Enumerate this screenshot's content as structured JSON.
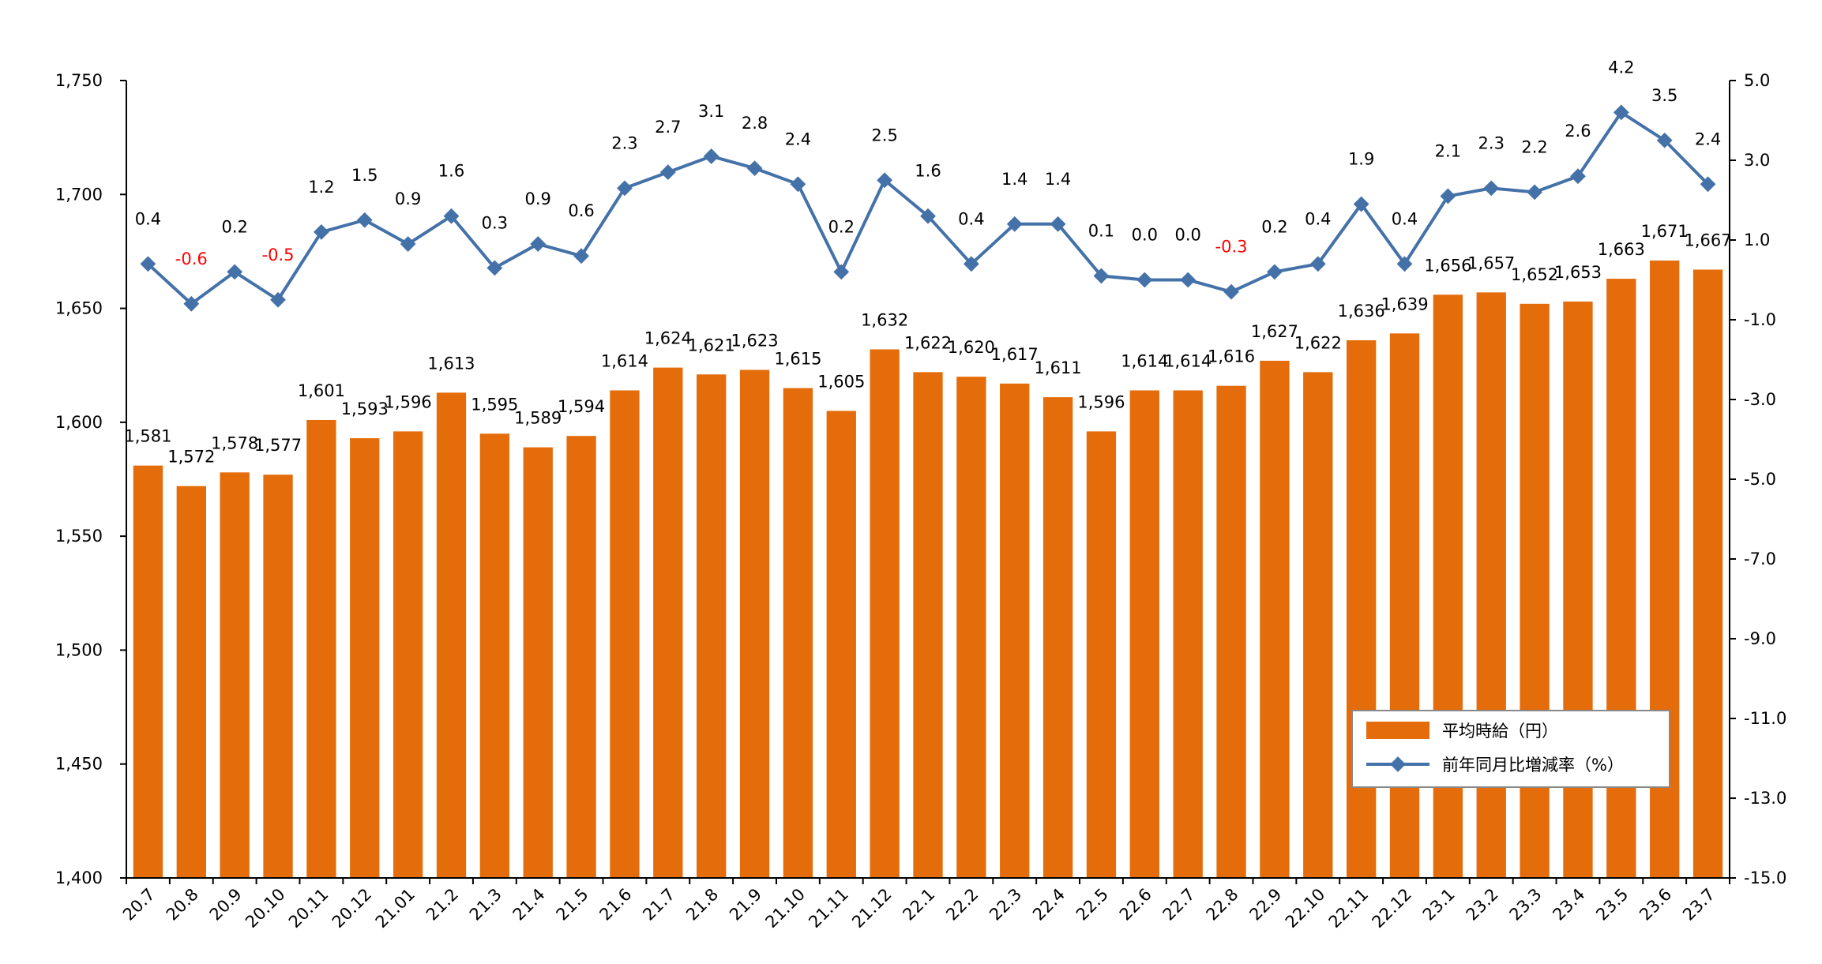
{
  "chart_data": {
    "type": "bar",
    "title": "",
    "xlabel": "",
    "ylabel": "",
    "categories": [
      "20.7",
      "20.8",
      "20.9",
      "20.10",
      "20.11",
      "20.12",
      "21.01",
      "21.2",
      "21.3",
      "21.4",
      "21.5",
      "21.6",
      "21.7",
      "21.8",
      "21.9",
      "21.10",
      "21.11",
      "21.12",
      "22.1",
      "22.2",
      "22.3",
      "22.4",
      "22.5",
      "22.6",
      "22.7",
      "22.8",
      "22.9",
      "22.10",
      "22.11",
      "22.12",
      "23.1",
      "23.2",
      "23.3",
      "23.4",
      "23.5",
      "23.6",
      "23.7"
    ],
    "series": [
      {
        "name": "平均時給（円）",
        "type": "bar",
        "axis": "left",
        "color": "#E46C0A",
        "values": [
          1581,
          1572,
          1578,
          1577,
          1601,
          1593,
          1596,
          1613,
          1595,
          1589,
          1594,
          1614,
          1624,
          1621,
          1623,
          1615,
          1605,
          1632,
          1622,
          1620,
          1617,
          1611,
          1596,
          1614,
          1614,
          1616,
          1627,
          1622,
          1636,
          1639,
          1656,
          1657,
          1652,
          1653,
          1663,
          1671,
          1667
        ],
        "labels": [
          "1,581",
          "1,572",
          "1,578",
          "1,577",
          "1,601",
          "1,593",
          "1,596",
          "1,613",
          "1,595",
          "1,589",
          "1,594",
          "1,614",
          "1,624",
          "1,621",
          "1,623",
          "1,615",
          "1,605",
          "1,632",
          "1,622",
          "1,620",
          "1,617",
          "1,611",
          "1,596",
          "1,614",
          "1,614",
          "1,616",
          "1,627",
          "1,622",
          "1,636",
          "1,639",
          "1,656",
          "1,657",
          "1,652",
          "1,653",
          "1,663",
          "1,671",
          "1,667"
        ]
      },
      {
        "name": "前年同月比増減率（%）",
        "type": "line",
        "axis": "right",
        "color": "#4472A8",
        "negative_label_color": "#FF0000",
        "values": [
          0.4,
          -0.6,
          0.2,
          -0.5,
          1.2,
          1.5,
          0.9,
          1.6,
          0.3,
          0.9,
          0.6,
          2.3,
          2.7,
          3.1,
          2.8,
          2.4,
          0.2,
          2.5,
          1.6,
          0.4,
          1.4,
          1.4,
          0.1,
          0.0,
          0.0,
          -0.3,
          0.2,
          0.4,
          1.9,
          0.4,
          2.1,
          2.3,
          2.2,
          2.6,
          4.2,
          3.5,
          2.4
        ],
        "labels": [
          "0.4",
          "-0.6",
          "0.2",
          "-0.5",
          "1.2",
          "1.5",
          "0.9",
          "1.6",
          "0.3",
          "0.9",
          "0.6",
          "2.3",
          "2.7",
          "3.1",
          "2.8",
          "2.4",
          "0.2",
          "2.5",
          "1.6",
          "0.4",
          "1.4",
          "1.4",
          "0.1",
          "0.0",
          "0.0",
          "-0.3",
          "0.2",
          "0.4",
          "1.9",
          "0.4",
          "2.1",
          "2.3",
          "2.2",
          "2.6",
          "4.2",
          "3.5",
          "2.4"
        ]
      }
    ],
    "y_left": {
      "min": 1400,
      "max": 1750,
      "step": 50,
      "tick_labels": [
        "1,400",
        "1,450",
        "1,500",
        "1,550",
        "1,600",
        "1,650",
        "1,700",
        "1,750"
      ]
    },
    "y_right": {
      "min": -15,
      "max": 5,
      "step": 2,
      "tick_labels": [
        "-15.0",
        "-13.0",
        "-11.0",
        "-9.0",
        "-7.0",
        "-5.0",
        "-3.0",
        "-1.0",
        "1.0",
        "3.0",
        "5.0"
      ],
      "negative_tick_color": "#FF0000"
    },
    "grid": false,
    "legend": {
      "position": "bottom-right",
      "entries": [
        "平均時給（円）",
        "前年同月比増減率（%）"
      ]
    }
  }
}
